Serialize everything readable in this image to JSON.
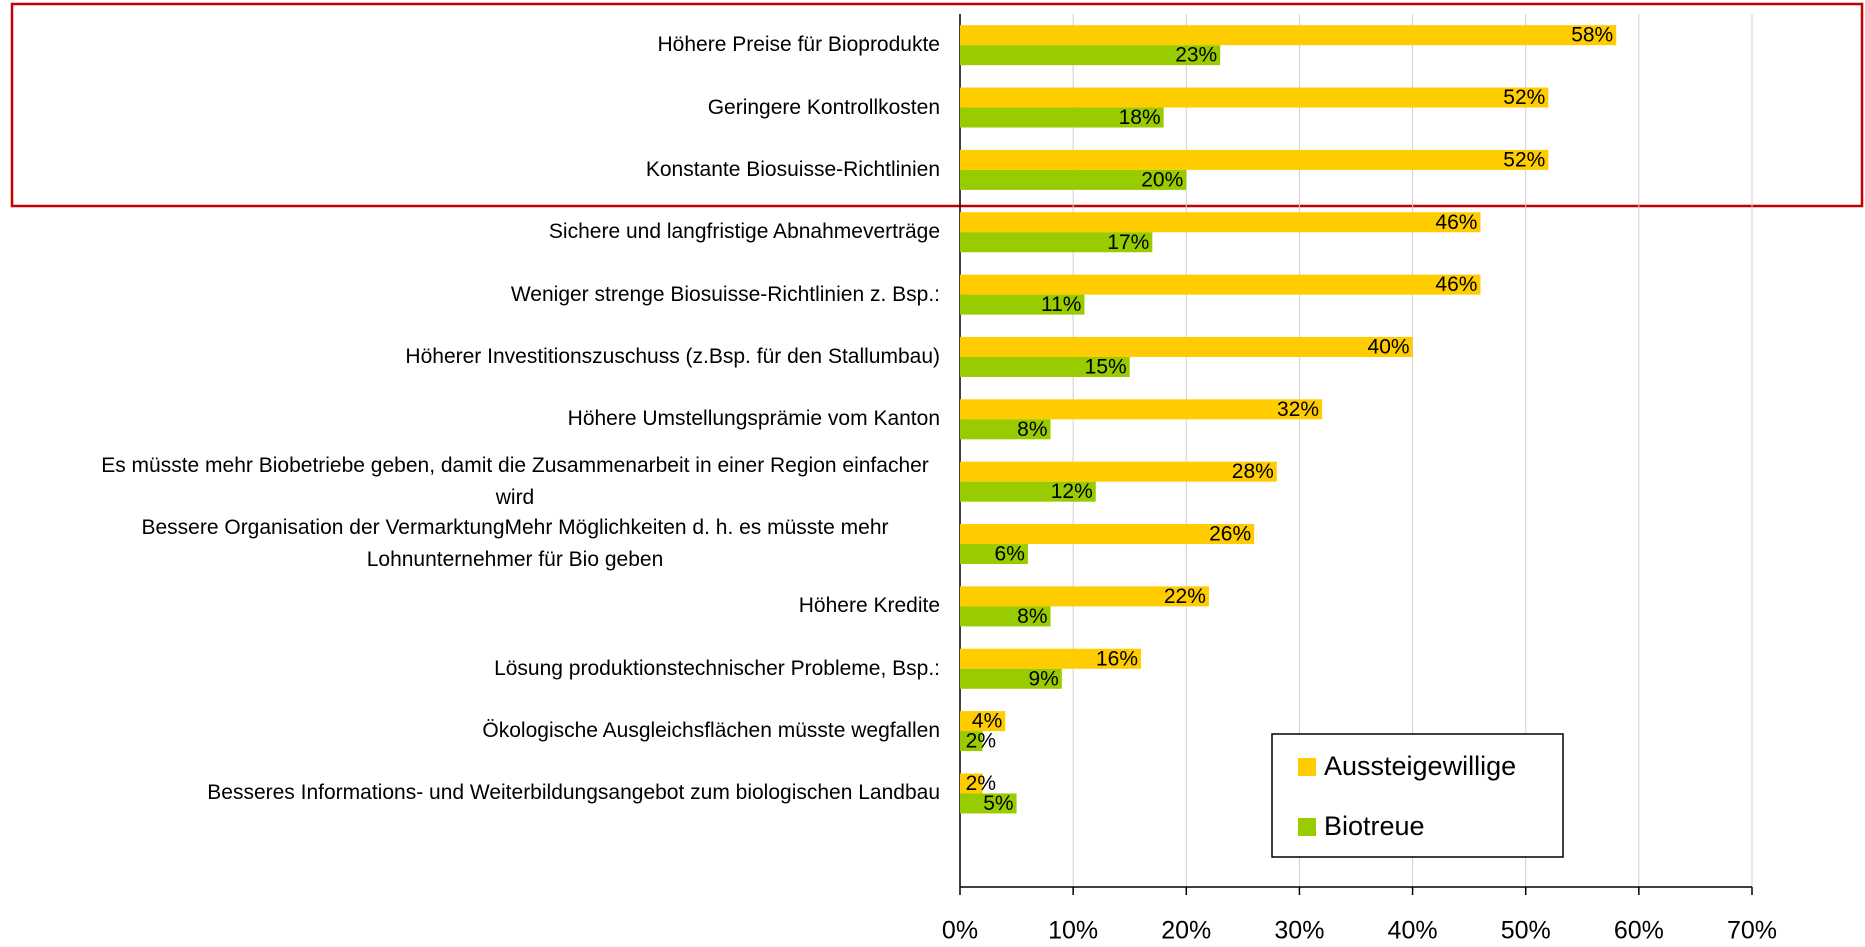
{
  "chart_data": {
    "type": "hbar",
    "categories": [
      "Höhere Preise für Bioprodukte",
      "Geringere Kontrollkosten",
      "Konstante Biosuisse-Richtlinien",
      "Sichere und langfristige Abnahmeverträge",
      "Weniger strenge Biosuisse-Richtlinien z. Bsp.:",
      "Höherer Investitionszuschuss (z.Bsp. für den Stallumbau)",
      "Höhere Umstellungsprämie vom Kanton",
      "Es müsste mehr Biobetriebe geben, damit die Zusammenarbeit in einer Region einfacher wird",
      "Bessere Organisation der VermarktungMehr Möglichkeiten d. h. es müsste mehr Lohnunternehmer für Bio geben",
      "Höhere Kredite",
      "Lösung produktionstechnischer Probleme, Bsp.:",
      "Ökologische Ausgleichsflächen müsste wegfallen",
      "Besseres Informations- und Weiterbildungsangebot zum biologischen Landbau"
    ],
    "series": [
      {
        "name": "Aussteigewillige",
        "color": "#ffcc00",
        "values": [
          58,
          52,
          52,
          46,
          46,
          40,
          32,
          28,
          26,
          22,
          16,
          4,
          2
        ],
        "value_labels": [
          "58%",
          "52%",
          "52%",
          "46%",
          "46%",
          "40%",
          "32%",
          "28%",
          "26%",
          "22%",
          "16%",
          "4%",
          "2%"
        ]
      },
      {
        "name": "Biotreue",
        "color": "#99cc00",
        "values": [
          23,
          18,
          20,
          17,
          11,
          15,
          8,
          12,
          6,
          8,
          9,
          2,
          5
        ],
        "value_labels": [
          "23%",
          "18%",
          "20%",
          "17%",
          "11%",
          "15%",
          "8%",
          "12%",
          "6%",
          "8%",
          "9%",
          "2%",
          "5%"
        ]
      }
    ],
    "xlim": [
      0,
      70
    ],
    "xticks": [
      {
        "value": 0,
        "label": "0%"
      },
      {
        "value": 10,
        "label": "10%"
      },
      {
        "value": 20,
        "label": "20%"
      },
      {
        "value": 30,
        "label": "30%"
      },
      {
        "value": 40,
        "label": "40%"
      },
      {
        "value": 50,
        "label": "50%"
      },
      {
        "value": 60,
        "label": "60%"
      },
      {
        "value": 70,
        "label": "70%"
      }
    ],
    "grid": true,
    "legend": "lower-right"
  }
}
